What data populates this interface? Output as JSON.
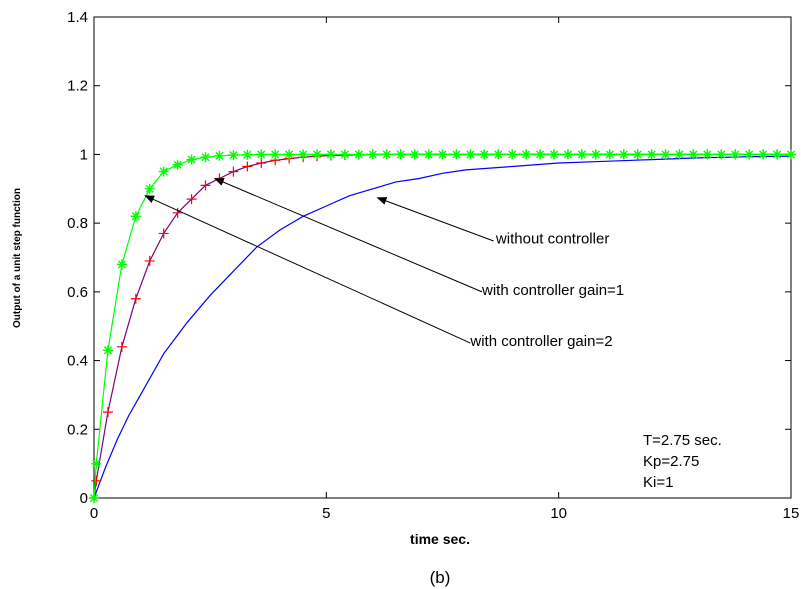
{
  "caption": "(b)",
  "chart_data": {
    "type": "line",
    "title": "",
    "xlabel": "time sec.",
    "ylabel": "Output of a unit step function",
    "xlim": [
      0,
      15
    ],
    "ylim": [
      0,
      1.4
    ],
    "xticks": [
      0,
      5,
      10,
      15
    ],
    "yticks": [
      0,
      0.2,
      0.4,
      0.6,
      0.8,
      1,
      1.2,
      1.4
    ],
    "grid": false,
    "series": [
      {
        "name": "without controller",
        "color": "#0000ff",
        "marker": "none",
        "x": [
          0,
          0.25,
          0.5,
          0.75,
          1,
          1.5,
          2,
          2.5,
          3,
          3.5,
          4,
          4.5,
          5,
          5.5,
          6,
          6.5,
          7,
          7.5,
          8,
          9,
          10,
          11,
          12,
          13,
          14,
          15
        ],
        "y": [
          0,
          0.09,
          0.17,
          0.24,
          0.3,
          0.42,
          0.51,
          0.59,
          0.66,
          0.73,
          0.78,
          0.82,
          0.85,
          0.88,
          0.9,
          0.92,
          0.93,
          0.945,
          0.955,
          0.965,
          0.975,
          0.98,
          0.985,
          0.99,
          0.993,
          0.995
        ]
      },
      {
        "name": "with controller gain=1",
        "color": "#800080",
        "marker": "+",
        "marker_color": "#ff0000",
        "x": [
          0,
          0.05,
          0.3,
          0.6,
          0.9,
          1.2,
          1.5,
          1.8,
          2.1,
          2.4,
          2.7,
          3.0,
          3.3,
          3.6,
          3.9,
          4.2,
          4.5,
          4.8,
          5.1,
          5.4,
          5.7,
          6.0,
          6.3,
          6.6,
          6.9,
          7.2,
          7.5,
          7.8,
          8.1,
          8.4,
          8.7,
          9.0,
          9.3,
          9.6,
          9.9,
          10.2,
          10.5,
          10.8,
          11.1,
          11.4,
          11.7,
          12.0,
          12.3,
          12.6,
          12.9,
          13.2,
          13.5,
          13.8,
          14.1,
          14.4,
          14.7,
          15.0
        ],
        "y": [
          0,
          0.05,
          0.25,
          0.44,
          0.58,
          0.69,
          0.77,
          0.83,
          0.87,
          0.91,
          0.93,
          0.95,
          0.965,
          0.975,
          0.983,
          0.988,
          0.992,
          0.995,
          0.997,
          0.998,
          0.999,
          1,
          1,
          1,
          1,
          1,
          1,
          1,
          1,
          1,
          1,
          1,
          1,
          1,
          1,
          1,
          1,
          1,
          1,
          1,
          1,
          1,
          1,
          1,
          1,
          1,
          1,
          1,
          1,
          1,
          1,
          1
        ]
      },
      {
        "name": "with controller gain=2",
        "color": "#00ff00",
        "marker": "*",
        "marker_color": "#00ff00",
        "x": [
          0,
          0.05,
          0.3,
          0.6,
          0.9,
          1.2,
          1.5,
          1.8,
          2.1,
          2.4,
          2.7,
          3.0,
          3.3,
          3.6,
          3.9,
          4.2,
          4.5,
          4.8,
          5.1,
          5.4,
          5.7,
          6.0,
          6.3,
          6.6,
          6.9,
          7.2,
          7.5,
          7.8,
          8.1,
          8.4,
          8.7,
          9.0,
          9.3,
          9.6,
          9.9,
          10.2,
          10.5,
          10.8,
          11.1,
          11.4,
          11.7,
          12.0,
          12.3,
          12.6,
          12.9,
          13.2,
          13.5,
          13.8,
          14.1,
          14.4,
          14.7,
          15.0
        ],
        "y": [
          0,
          0.1,
          0.43,
          0.68,
          0.82,
          0.9,
          0.95,
          0.97,
          0.985,
          0.992,
          0.996,
          0.998,
          0.999,
          1,
          1,
          1,
          1,
          1,
          1,
          1,
          1,
          1,
          1,
          1,
          1,
          1,
          1,
          1,
          1,
          1,
          1,
          1,
          1,
          1,
          1,
          1,
          1,
          1,
          1,
          1,
          1,
          1,
          1,
          1,
          1,
          1,
          1,
          1,
          1,
          1,
          1,
          1
        ]
      }
    ],
    "annotations": [
      {
        "text": "without controller",
        "text_x": 8.65,
        "text_y": 0.756,
        "arrow_from": [
          8.6,
          0.748
        ],
        "arrow_to": [
          6.1,
          0.874
        ]
      },
      {
        "text": "with controller gain=1",
        "text_x": 8.35,
        "text_y": 0.606,
        "arrow_from": [
          8.35,
          0.6
        ],
        "arrow_to": [
          2.6,
          0.93
        ]
      },
      {
        "text": "with controller gain=2",
        "text_x": 8.1,
        "text_y": 0.457,
        "arrow_from": [
          8.1,
          0.451
        ],
        "arrow_to": [
          1.1,
          0.88
        ]
      }
    ],
    "params": [
      "T=2.75 sec.",
      "Kp=2.75",
      "Ki=1"
    ]
  }
}
